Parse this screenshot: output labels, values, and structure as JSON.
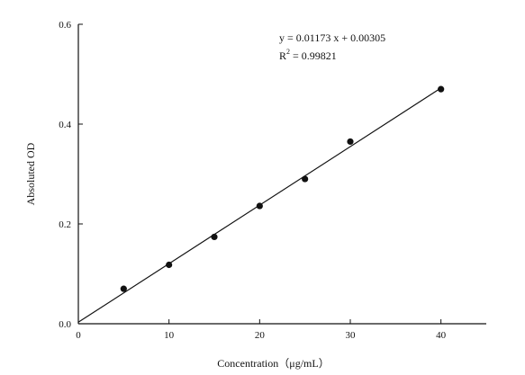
{
  "chart_data": {
    "type": "scatter",
    "xlabel": "Concentration（μg/mL）",
    "ylabel": "Absoluted OD",
    "xlim": [
      0,
      45
    ],
    "ylim": [
      0,
      0.6
    ],
    "x_ticks": [
      0,
      10,
      20,
      30,
      40
    ],
    "y_ticks": [
      0.0,
      0.2,
      0.4,
      0.6
    ],
    "x_tick_labels": [
      "0",
      "10",
      "20",
      "30",
      "40"
    ],
    "y_tick_labels": [
      "0.0",
      "0.2",
      "0.4",
      "0.6"
    ],
    "points": [
      {
        "x": 5,
        "y": 0.07
      },
      {
        "x": 10,
        "y": 0.118
      },
      {
        "x": 15,
        "y": 0.174
      },
      {
        "x": 20,
        "y": 0.236
      },
      {
        "x": 25,
        "y": 0.29
      },
      {
        "x": 30,
        "y": 0.365
      },
      {
        "x": 40,
        "y": 0.47
      }
    ],
    "fit_line": {
      "slope": 0.01173,
      "intercept": 0.00305,
      "x_start": 0,
      "x_end": 40
    },
    "equation_text": "y = 0.01173 x + 0.00305",
    "r2_prefix": "R",
    "r2_sup": "2",
    "r2_value": " = 0.99821",
    "grid": false,
    "frame": "left-bottom"
  }
}
